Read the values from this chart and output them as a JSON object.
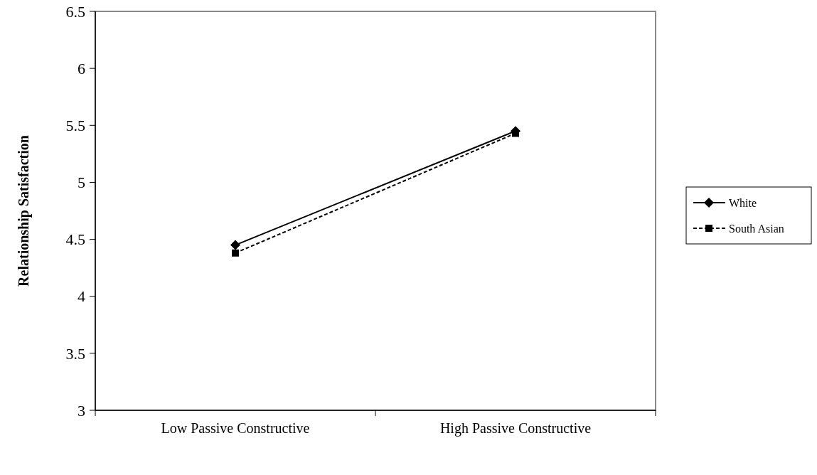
{
  "chart_data": {
    "type": "line",
    "ylabel": "Relationship Satisfaction",
    "categories": [
      "Low Passive Constructive",
      "High Passive Constructive"
    ],
    "series": [
      {
        "name": "White",
        "color": "#000000",
        "values": [
          4.45,
          5.45
        ],
        "marker": "diamond",
        "line_style": "solid"
      },
      {
        "name": "South Asian",
        "color": "#000000",
        "values": [
          4.38,
          5.43
        ],
        "marker": "square",
        "line_style": "dashed"
      }
    ],
    "ylim": [
      3,
      6.5
    ],
    "yticks": [
      3,
      3.5,
      4,
      4.5,
      5,
      5.5,
      6,
      6.5
    ],
    "grid": false,
    "legend": "right"
  }
}
